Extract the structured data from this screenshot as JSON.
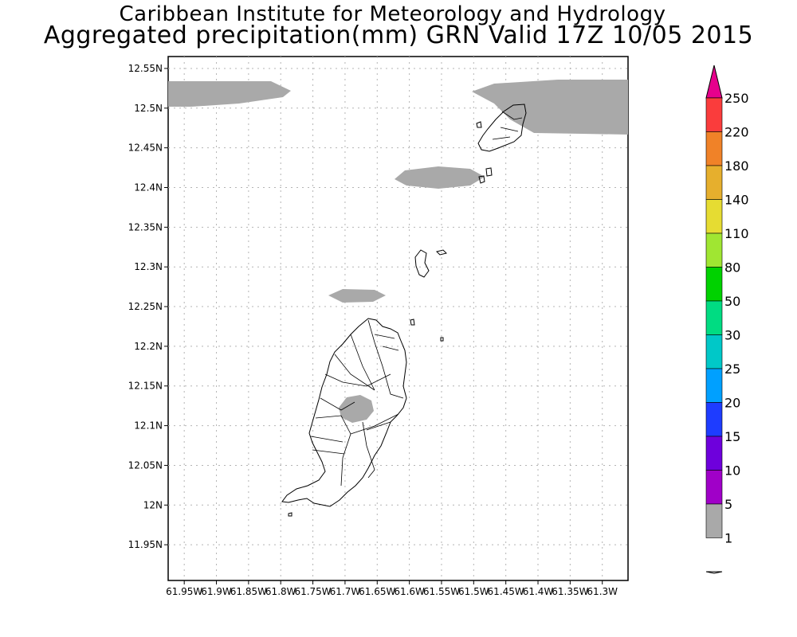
{
  "title": "Caribbean Institute for Meteorology and Hydrology",
  "subtitle": "Aggregated precipitation(mm) GRN Valid 17Z 10/05 2015",
  "map": {
    "region": "Grenada",
    "lon_range": [
      -61.975,
      -61.26
    ],
    "lat_range": [
      11.905,
      12.565
    ],
    "grid": true,
    "lat_ticks": [
      "12.55N",
      "12.5N",
      "12.45N",
      "12.4N",
      "12.35N",
      "12.3N",
      "12.25N",
      "12.2N",
      "12.15N",
      "12.1N",
      "12.05N",
      "12N",
      "11.95N"
    ],
    "lon_ticks": [
      "61.95W",
      "61.9W",
      "61.85W",
      "61.8W",
      "61.75W",
      "61.7W",
      "61.65W",
      "61.6W",
      "61.55W",
      "61.5W",
      "61.45W",
      "61.4W",
      "61.35W",
      "61.3W"
    ],
    "precip_color": "#a9a9a9"
  },
  "colorbar": {
    "labels": [
      "1",
      "5",
      "10",
      "15",
      "20",
      "25",
      "30",
      "50",
      "80",
      "110",
      "140",
      "180",
      "220",
      "250"
    ],
    "colors": [
      "#ffffff",
      "#a9a9a9",
      "#a000c8",
      "#6e00dc",
      "#1e3cff",
      "#00a0ff",
      "#00c8c8",
      "#00dc82",
      "#00d200",
      "#a0e632",
      "#e6dc32",
      "#e6af2d",
      "#f08228",
      "#fa3c3c",
      "#e6008c"
    ]
  }
}
